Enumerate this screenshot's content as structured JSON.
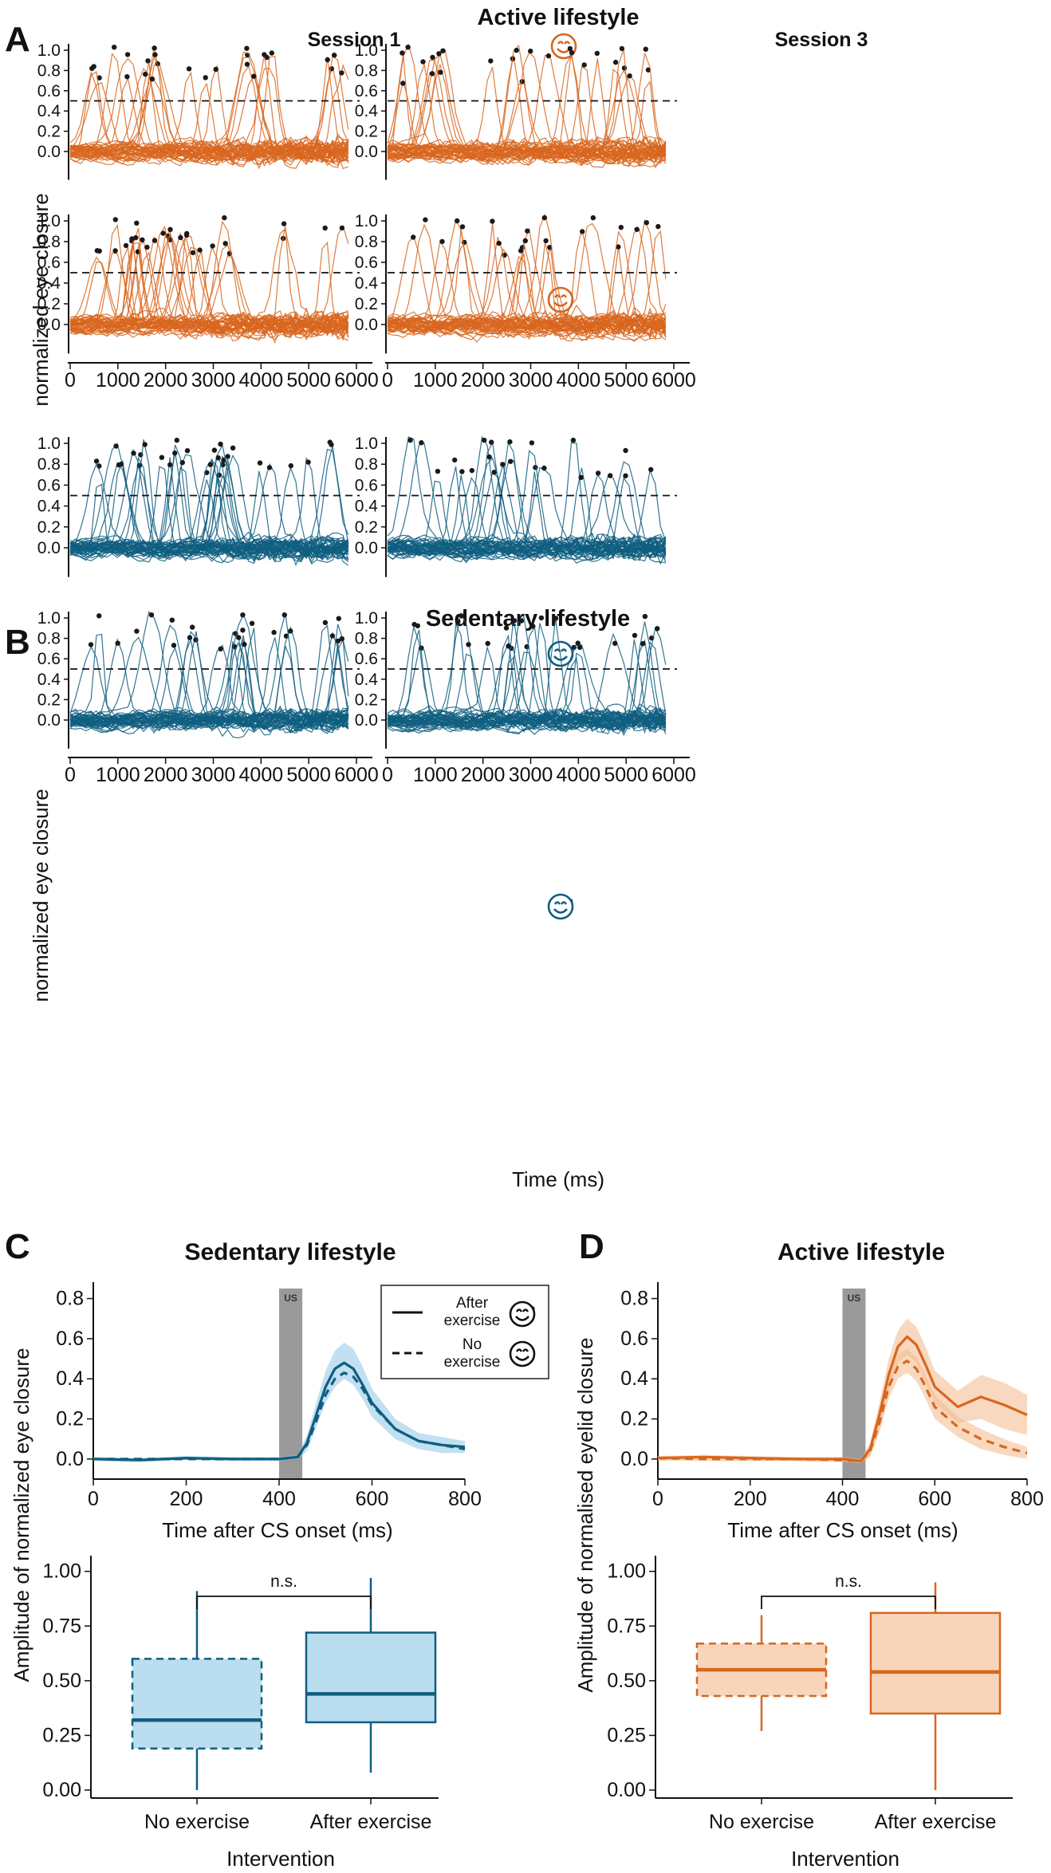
{
  "figure": {
    "panel_letters": [
      "A",
      "B",
      "C",
      "D"
    ],
    "titles": {
      "A": "Active lifestyle",
      "B": "Sedentary lifestyle",
      "C": "Sedentary lifestyle",
      "D": "Active lifestyle"
    },
    "session_labels": [
      "Session 1",
      "Session 3"
    ],
    "colors": {
      "active": "#d8661f",
      "active_light": "#f3b98c",
      "sedentary": "#0f5e80",
      "sedentary_light": "#8ec6e6",
      "dots": "#1a1a1a",
      "us_bar": "#9a9a9a"
    },
    "icons": {
      "no_exercise": "smiling-face-icon",
      "after_exercise": "sweating-smiling-face-icon"
    }
  },
  "chart_data": [
    {
      "id": "A",
      "type": "line",
      "title": "Active lifestyle",
      "ylabel": "normalized eye closure",
      "xlabel": "",
      "x_ticks": [
        0,
        1000,
        2000,
        3000,
        4000,
        5000,
        6000
      ],
      "xlim": [
        0,
        6000
      ],
      "rows": [
        {
          "condition": "No exercise",
          "icon": "smiling-face-icon",
          "y_ticks": [
            0.0,
            0.2,
            0.4,
            0.6,
            0.8,
            1.0
          ],
          "ylim": [
            -0.25,
            1.05
          ]
        },
        {
          "condition": "After exercise",
          "icon": "sweating-smiling-face-icon",
          "y_ticks": [
            0.0,
            0.2,
            0.4,
            0.6,
            0.8,
            1.0
          ],
          "ylim": [
            -0.25,
            1.05
          ]
        }
      ],
      "columns": [
        "Session 1",
        "Session 3"
      ],
      "threshold": 0.5,
      "series_description": "individual trial eyelid traces with peak markers"
    },
    {
      "id": "B",
      "type": "line",
      "title": "Sedentary lifestyle",
      "ylabel": "normalized eye closure",
      "xlabel": "Time (ms)",
      "x_ticks": [
        0,
        1000,
        2000,
        3000,
        4000,
        5000,
        6000
      ],
      "xlim": [
        0,
        6000
      ],
      "rows": [
        {
          "condition": "No exercise",
          "icon": "smiling-face-icon",
          "y_ticks": [
            0.0,
            0.2,
            0.4,
            0.6,
            0.8,
            1.0
          ],
          "ylim": [
            -0.25,
            1.05
          ]
        },
        {
          "condition": "After exercise",
          "icon": "sweating-smiling-face-icon",
          "y_ticks": [
            0.0,
            0.2,
            0.4,
            0.6,
            0.8,
            1.0
          ],
          "ylim": [
            -0.25,
            1.05
          ]
        }
      ],
      "columns": [
        "Session 1",
        "Session 3"
      ],
      "threshold": 0.5
    },
    {
      "id": "C",
      "type": "line",
      "title": "Sedentary lifestyle",
      "xlabel": "Time after CS onset (ms)",
      "ylabel": "Amplitude of normalized eye closure",
      "xlim": [
        0,
        800
      ],
      "ylim": [
        -0.1,
        0.85
      ],
      "x_ticks": [
        0,
        200,
        400,
        600,
        800
      ],
      "y_ticks": [
        0.0,
        0.2,
        0.4,
        0.6,
        0.8
      ],
      "us_window": [
        400,
        450
      ],
      "us_label": "US",
      "legend": [
        {
          "label_line1": "After",
          "label_line2": "exercise",
          "style": "solid",
          "icon": "sweating-smiling-face-icon"
        },
        {
          "label_line1": "No",
          "label_line2": "exercise",
          "style": "dashed",
          "icon": "smiling-face-icon"
        }
      ],
      "series": [
        {
          "name": "After exercise",
          "style": "solid",
          "x": [
            0,
            100,
            200,
            300,
            400,
            440,
            460,
            480,
            500,
            520,
            540,
            560,
            580,
            600,
            650,
            700,
            750,
            800
          ],
          "y": [
            0.0,
            -0.005,
            0.005,
            0.0,
            0.0,
            0.01,
            0.08,
            0.22,
            0.36,
            0.45,
            0.48,
            0.45,
            0.37,
            0.28,
            0.15,
            0.09,
            0.07,
            0.06
          ],
          "ci_low": [
            -0.01,
            -0.015,
            -0.005,
            -0.01,
            -0.01,
            0.0,
            0.04,
            0.16,
            0.28,
            0.36,
            0.4,
            0.37,
            0.3,
            0.21,
            0.1,
            0.05,
            0.03,
            0.03
          ],
          "ci_high": [
            0.01,
            0.005,
            0.015,
            0.01,
            0.01,
            0.02,
            0.12,
            0.28,
            0.44,
            0.54,
            0.58,
            0.55,
            0.46,
            0.35,
            0.2,
            0.13,
            0.11,
            0.09
          ]
        },
        {
          "name": "No exercise",
          "style": "dashed",
          "x": [
            0,
            100,
            200,
            300,
            400,
            440,
            460,
            480,
            500,
            520,
            540,
            560,
            580,
            600,
            650,
            700,
            750,
            800
          ],
          "y": [
            0.0,
            0.0,
            0.0,
            0.0,
            0.0,
            0.01,
            0.07,
            0.19,
            0.32,
            0.4,
            0.43,
            0.41,
            0.35,
            0.27,
            0.15,
            0.09,
            0.07,
            0.05
          ]
        }
      ]
    },
    {
      "id": "D",
      "type": "line",
      "title": "Active lifestyle",
      "xlabel": "Time after CS onset (ms)",
      "ylabel": "Amplitude of normalised eyelid closure",
      "xlim": [
        0,
        800
      ],
      "ylim": [
        -0.1,
        0.85
      ],
      "x_ticks": [
        0,
        200,
        400,
        600,
        800
      ],
      "y_ticks": [
        0.0,
        0.2,
        0.4,
        0.6,
        0.8
      ],
      "us_window": [
        400,
        450
      ],
      "us_label": "US",
      "series": [
        {
          "name": "After exercise",
          "style": "solid",
          "x": [
            0,
            100,
            200,
            300,
            400,
            440,
            460,
            480,
            500,
            520,
            540,
            560,
            580,
            600,
            650,
            700,
            750,
            800
          ],
          "y": [
            0.005,
            0.01,
            0.005,
            0.0,
            0.0,
            -0.01,
            0.05,
            0.22,
            0.42,
            0.56,
            0.61,
            0.57,
            0.47,
            0.36,
            0.26,
            0.31,
            0.27,
            0.22
          ],
          "ci_low": [
            -0.01,
            0.0,
            -0.005,
            -0.01,
            -0.01,
            -0.02,
            0.02,
            0.16,
            0.34,
            0.48,
            0.52,
            0.48,
            0.38,
            0.28,
            0.18,
            0.2,
            0.15,
            0.12
          ],
          "ci_high": [
            0.015,
            0.02,
            0.015,
            0.01,
            0.01,
            0.0,
            0.08,
            0.28,
            0.5,
            0.64,
            0.7,
            0.66,
            0.56,
            0.44,
            0.34,
            0.42,
            0.38,
            0.32
          ]
        },
        {
          "name": "No exercise",
          "style": "dashed",
          "x": [
            0,
            100,
            200,
            300,
            400,
            440,
            460,
            480,
            500,
            520,
            540,
            560,
            580,
            600,
            650,
            700,
            750,
            800
          ],
          "y": [
            0.005,
            0.0,
            0.0,
            0.0,
            -0.005,
            -0.01,
            0.04,
            0.18,
            0.36,
            0.46,
            0.49,
            0.45,
            0.36,
            0.26,
            0.16,
            0.1,
            0.06,
            0.03
          ],
          "ci_low": [
            -0.005,
            -0.01,
            -0.01,
            -0.01,
            -0.015,
            -0.02,
            0.01,
            0.13,
            0.3,
            0.4,
            0.43,
            0.39,
            0.3,
            0.2,
            0.11,
            0.05,
            0.02,
            0.0
          ],
          "ci_high": [
            0.015,
            0.01,
            0.01,
            0.01,
            0.005,
            0.0,
            0.07,
            0.23,
            0.42,
            0.52,
            0.55,
            0.51,
            0.42,
            0.32,
            0.21,
            0.15,
            0.1,
            0.06
          ]
        }
      ]
    },
    {
      "id": "C-box",
      "type": "box",
      "xlabel": "Intervention",
      "ylabel": "Amplitude of normalized eye closure",
      "ylim": [
        0,
        1.05
      ],
      "y_ticks": [
        "0.00",
        "0.25",
        "0.50",
        "0.75",
        "1.00"
      ],
      "significance": "n.s.",
      "categories": [
        "No exercise",
        "After exercise"
      ],
      "boxes": [
        {
          "category": "No exercise",
          "min": 0.0,
          "q1": 0.19,
          "median": 0.32,
          "q3": 0.6,
          "max": 0.91,
          "style": "dashed"
        },
        {
          "category": "After exercise",
          "min": 0.08,
          "q1": 0.31,
          "median": 0.44,
          "q3": 0.72,
          "max": 0.97,
          "style": "solid"
        }
      ]
    },
    {
      "id": "D-box",
      "type": "box",
      "xlabel": "Intervention",
      "ylabel": "Amplitude of normalised eyelid closure",
      "ylim": [
        0,
        1.05
      ],
      "y_ticks": [
        "0.00",
        "0.25",
        "0.50",
        "0.75",
        "1.00"
      ],
      "significance": "n.s.",
      "categories": [
        "No exercise",
        "After exercise"
      ],
      "boxes": [
        {
          "category": "No exercise",
          "min": 0.27,
          "q1": 0.43,
          "median": 0.55,
          "q3": 0.67,
          "max": 0.8,
          "style": "dashed"
        },
        {
          "category": "After exercise",
          "min": 0.0,
          "q1": 0.35,
          "median": 0.54,
          "q3": 0.81,
          "max": 0.95,
          "style": "solid"
        }
      ]
    }
  ]
}
